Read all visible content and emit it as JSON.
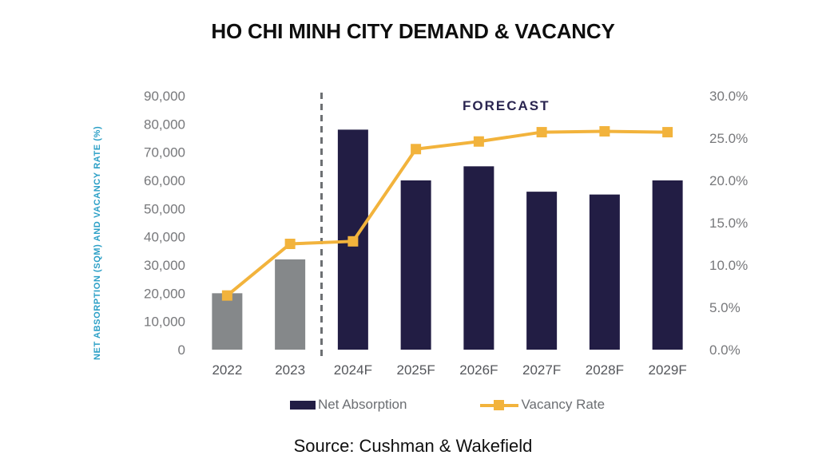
{
  "title": "HO CHI MINH CITY DEMAND & VACANCY",
  "forecast_label": "FORECAST",
  "source": "Source: Cushman & Wakefield",
  "colors": {
    "historical_bar": "#85888A",
    "forecast_bar": "#221D44",
    "line": "#F2B33C",
    "axis_title_teal": "#2B9FC6",
    "forecast_text": "#2A2550",
    "divider_gray": "#6D7073",
    "tick_gray": "#77787B",
    "x_label_gray": "#54565B",
    "legend_text_gray": "#6B6E72"
  },
  "chart_data": {
    "type": "bar",
    "subtype": "bar+line combo",
    "title": "HO CHI MINH CITY DEMAND & VACANCY",
    "categories": [
      "2022",
      "2023",
      "2024F",
      "2025F",
      "2026F",
      "2027F",
      "2028F",
      "2029F"
    ],
    "series": [
      {
        "name": "Net Absorption",
        "type": "bar",
        "axis": "left",
        "values": [
          20000,
          32000,
          78000,
          60000,
          65000,
          56000,
          55000,
          60000
        ]
      },
      {
        "name": "Vacancy Rate",
        "type": "line",
        "axis": "right",
        "values": [
          6.4,
          12.5,
          12.8,
          23.7,
          24.6,
          25.7,
          25.8,
          25.7
        ]
      }
    ],
    "left_axis": {
      "title": "NET ABSORPTION (SQM) AND VACANCY RATE (%)",
      "min": 0,
      "max": 90000,
      "step": 10000
    },
    "right_axis": {
      "min": 0,
      "max": 30,
      "step": 5,
      "format": "percent_1dp"
    },
    "forecast_divider_after": "2023",
    "annotations": [
      "FORECAST"
    ],
    "grid": false,
    "legend_position": "bottom",
    "legend": [
      "Net Absorption",
      "Vacancy Rate"
    ]
  }
}
